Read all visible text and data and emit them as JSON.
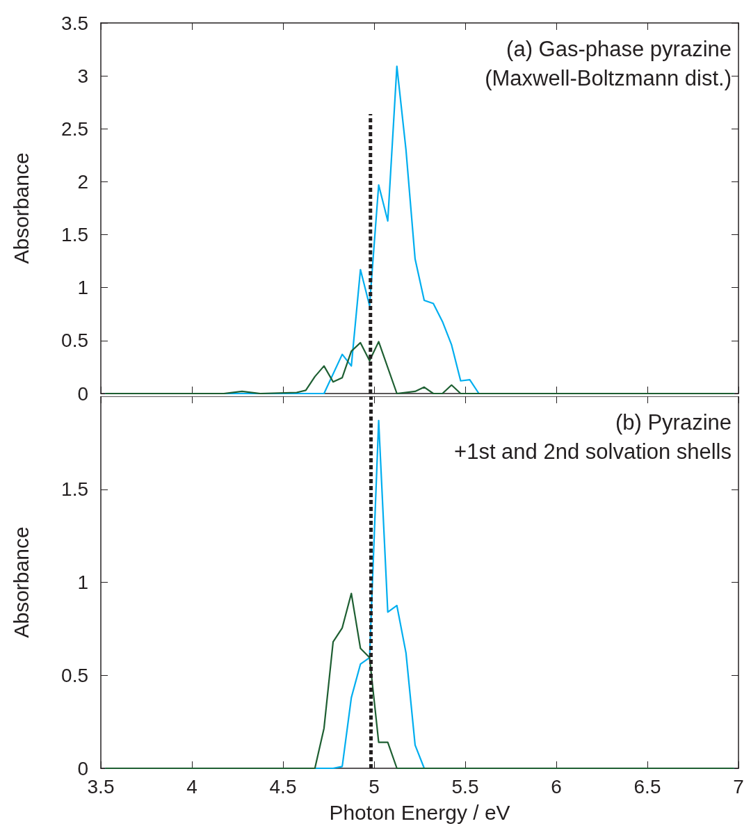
{
  "chart_data": [
    {
      "type": "line",
      "ylabel": "Absorbance",
      "annotations": [
        "(a) Gas-phase pyrazine",
        "(Maxwell-Boltzmann dist.)"
      ],
      "xlim": [
        3.5,
        7
      ],
      "xticks": [
        3.5,
        4,
        4.5,
        5,
        5.5,
        6,
        6.5,
        7
      ],
      "ylim": [
        0,
        3.5
      ],
      "yticks": [
        0,
        0.5,
        1,
        1.5,
        2,
        2.5,
        3,
        3.5
      ],
      "tick_labels": "y",
      "marker": "none",
      "series": [
        {
          "color": "#00aeef",
          "x": [
            3.525,
            4.725,
            4.825,
            4.875,
            4.925,
            4.975,
            5.025,
            5.075,
            5.125,
            5.175,
            5.225,
            5.275,
            5.325,
            5.375,
            5.425,
            5.475,
            5.525,
            5.575,
            6.975
          ],
          "values": [
            0,
            0,
            0.37,
            0.26,
            1.17,
            0.83,
            1.97,
            1.63,
            3.09,
            2.3,
            1.27,
            0.88,
            0.85,
            0.68,
            0.46,
            0.12,
            0.13,
            0,
            0
          ]
        },
        {
          "color": "#1e5f32",
          "x": [
            3.525,
            4.175,
            4.275,
            4.375,
            4.575,
            4.625,
            4.675,
            4.725,
            4.775,
            4.825,
            4.875,
            4.925,
            4.975,
            5.025,
            5.125,
            5.225,
            5.275,
            5.325,
            5.375,
            5.425,
            5.475,
            6.975
          ],
          "values": [
            0,
            0,
            0.02,
            0,
            0.01,
            0.03,
            0.16,
            0.26,
            0.11,
            0.15,
            0.4,
            0.48,
            0.31,
            0.49,
            0,
            0.02,
            0.06,
            0,
            0,
            0.08,
            0,
            0
          ]
        },
        {
          "color": "#231f20",
          "line_style": "dashed",
          "x": [
            4.98,
            4.98
          ],
          "values": [
            0,
            2.64
          ]
        }
      ]
    },
    {
      "type": "line",
      "xlabel": "Photon Energy / eV",
      "ylabel": "Absorbance",
      "annotations": [
        "(b) Pyrazine",
        "+1st and 2nd solvation shells"
      ],
      "xlim": [
        3.5,
        7
      ],
      "xticks": [
        3.5,
        4,
        4.5,
        5,
        5.5,
        6,
        6.5,
        7
      ],
      "ylim": [
        0,
        2
      ],
      "yticks": [
        0,
        0.5,
        1,
        1.5
      ],
      "marker": "none",
      "series": [
        {
          "color": "#00aeef",
          "x": [
            3.525,
            4.775,
            4.825,
            4.875,
            4.925,
            4.975,
            5.025,
            5.075,
            5.125,
            5.175,
            5.225,
            5.275,
            6.975
          ],
          "values": [
            0,
            0,
            0.01,
            0.38,
            0.56,
            0.595,
            1.87,
            0.84,
            0.875,
            0.62,
            0.125,
            0,
            0
          ]
        },
        {
          "color": "#1e5f32",
          "x": [
            3.525,
            4.675,
            4.725,
            4.775,
            4.825,
            4.875,
            4.925,
            4.975,
            5.025,
            5.075,
            5.125,
            6.975
          ],
          "values": [
            0,
            0,
            0.215,
            0.68,
            0.755,
            0.94,
            0.645,
            0.595,
            0.14,
            0.14,
            0,
            0
          ]
        }
      ],
      "ref_lines": [
        {
          "axis": "x",
          "value": 4.98,
          "color": "#231f20",
          "line_style": "dashed"
        }
      ]
    }
  ]
}
